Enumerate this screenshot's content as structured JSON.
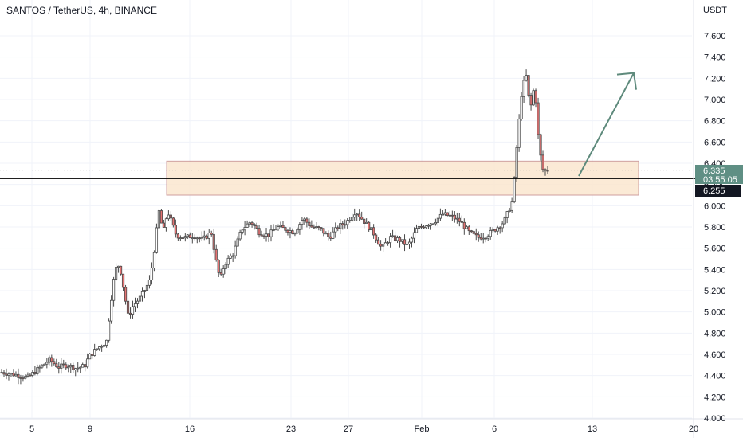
{
  "header": {
    "title": "SANTOS / TetherUS, 4h, BINANCE",
    "currency": "USDT"
  },
  "price_labels": {
    "last_price": "6.335",
    "countdown": "03:55:05",
    "level_price": "6.255"
  },
  "colors": {
    "up": "#26a69a",
    "down": "#ef5350",
    "candle_body_up": "#ffffff",
    "candle_body_down": "#e57373",
    "wick": "#4a4a4a",
    "zone_fill": "#fbe7cf",
    "zone_border": "#c78f8f",
    "arrow": "#5e8a7c",
    "level_line": "#000000",
    "last_label_bg": "#5f8f84",
    "level_label_bg": "#131722",
    "grid": "#f0f3fa"
  },
  "chart_data": {
    "type": "candlestick",
    "title": "SANTOS / TetherUS, 4h, BINANCE",
    "ylabel": "USDT",
    "ylim": [
      4.0,
      7.7
    ],
    "y_ticks": [
      "4.000",
      "4.200",
      "4.400",
      "4.600",
      "4.800",
      "5.000",
      "5.200",
      "5.400",
      "5.600",
      "5.800",
      "6.000",
      "6.200",
      "6.400",
      "6.600",
      "6.800",
      "7.000",
      "7.200",
      "7.400",
      "7.600"
    ],
    "x_ticks": [
      "5",
      "9",
      "16",
      "23",
      "27",
      "Feb",
      "6",
      "13",
      "20"
    ],
    "price_path": [
      [
        0,
        4.43
      ],
      [
        3,
        4.41
      ],
      [
        6,
        4.38
      ],
      [
        8,
        4.45
      ],
      [
        11,
        4.55
      ],
      [
        13,
        4.48
      ],
      [
        15,
        4.5
      ],
      [
        17,
        4.47
      ],
      [
        19,
        4.49
      ],
      [
        20,
        4.58
      ],
      [
        22,
        4.66
      ],
      [
        24,
        4.72
      ],
      [
        25,
        5.1
      ],
      [
        26,
        5.4
      ],
      [
        27,
        5.45
      ],
      [
        28,
        5.2
      ],
      [
        29,
        4.95
      ],
      [
        30,
        5.05
      ],
      [
        32,
        5.15
      ],
      [
        34,
        5.3
      ],
      [
        35,
        5.6
      ],
      [
        36,
        5.95
      ],
      [
        37,
        5.75
      ],
      [
        38,
        5.95
      ],
      [
        40,
        5.72
      ],
      [
        42,
        5.7
      ],
      [
        44,
        5.72
      ],
      [
        46,
        5.68
      ],
      [
        48,
        5.75
      ],
      [
        49,
        5.5
      ],
      [
        50,
        5.3
      ],
      [
        51,
        5.45
      ],
      [
        53,
        5.55
      ],
      [
        55,
        5.78
      ],
      [
        57,
        5.85
      ],
      [
        59,
        5.75
      ],
      [
        61,
        5.72
      ],
      [
        63,
        5.8
      ],
      [
        65,
        5.78
      ],
      [
        67,
        5.75
      ],
      [
        69,
        5.88
      ],
      [
        71,
        5.8
      ],
      [
        73,
        5.78
      ],
      [
        75,
        5.7
      ],
      [
        77,
        5.8
      ],
      [
        79,
        5.85
      ],
      [
        81,
        5.95
      ],
      [
        83,
        5.85
      ],
      [
        85,
        5.75
      ],
      [
        87,
        5.6
      ],
      [
        89,
        5.7
      ],
      [
        91,
        5.68
      ],
      [
        93,
        5.62
      ],
      [
        95,
        5.78
      ],
      [
        97,
        5.82
      ],
      [
        99,
        5.85
      ],
      [
        101,
        5.92
      ],
      [
        103,
        5.9
      ],
      [
        105,
        5.85
      ],
      [
        107,
        5.75
      ],
      [
        109,
        5.7
      ],
      [
        111,
        5.72
      ],
      [
        113,
        5.78
      ],
      [
        115,
        5.85
      ],
      [
        117,
        6.05
      ],
      [
        118,
        6.6
      ],
      [
        119,
        7.05
      ],
      [
        120,
        7.25
      ],
      [
        121,
        6.9
      ],
      [
        122,
        7.15
      ],
      [
        123,
        6.55
      ],
      [
        124,
        6.32
      ],
      [
        125,
        6.34
      ]
    ],
    "zone": {
      "from": 6.1,
      "to": 6.42
    },
    "level": 6.255,
    "last": 6.335,
    "arrow": {
      "from": 6.28,
      "to": 7.25
    }
  }
}
